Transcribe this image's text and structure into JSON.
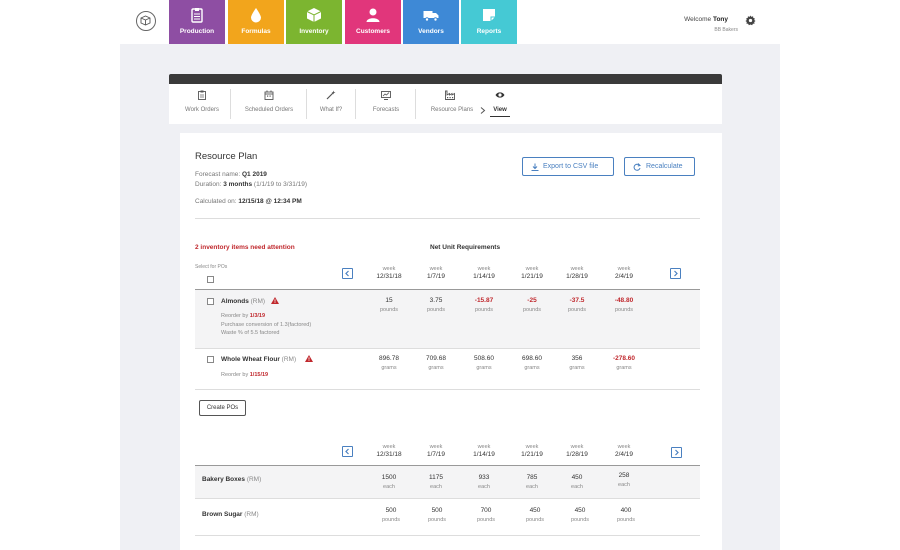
{
  "nav": {
    "tabs": [
      {
        "label": "Production",
        "color": "#8e4ea3",
        "icon": "clipboard-icon"
      },
      {
        "label": "Formulas",
        "color": "#f2a51c",
        "icon": "drop-icon"
      },
      {
        "label": "Inventory",
        "color": "#7cb530",
        "icon": "box-icon"
      },
      {
        "label": "Customers",
        "color": "#e1367b",
        "icon": "person-icon"
      },
      {
        "label": "Vendors",
        "color": "#3e89d6",
        "icon": "truck-icon"
      },
      {
        "label": "Reports",
        "color": "#45c9d4",
        "icon": "report-icon"
      }
    ]
  },
  "user": {
    "welcome": "Welcome",
    "name": "Tony",
    "org": "BB Bakers"
  },
  "subnav": [
    {
      "label": "Work Orders"
    },
    {
      "label": "Scheduled Orders"
    },
    {
      "label": "What If?"
    },
    {
      "label": "Forecasts"
    },
    {
      "label": "Resource Plans"
    },
    {
      "label": "View"
    }
  ],
  "plan": {
    "title": "Resource Plan",
    "forecast_label": "Forecast name:",
    "forecast_name": "Q1 2019",
    "duration_label": "Duration:",
    "duration": "3 months",
    "duration_range": "(1/1/19 to 3/31/19)",
    "calculated_label": "Calculated on:",
    "calculated": "12/15/18 @ 12:34 PM",
    "export_label": "Export to CSV file",
    "recalc_label": "Recalculate"
  },
  "attention": "2 inventory items need attention",
  "table_title": "Net Unit Requirements",
  "select_label": "Select for POs",
  "weeks": [
    {
      "w": "week",
      "d": "12/31/18"
    },
    {
      "w": "week",
      "d": "1/7/19"
    },
    {
      "w": "week",
      "d": "1/14/19"
    },
    {
      "w": "week",
      "d": "1/21/19"
    },
    {
      "w": "week",
      "d": "1/28/19"
    },
    {
      "w": "week",
      "d": "2/4/19"
    }
  ],
  "items": [
    {
      "name": "Almonds",
      "tag": "(RM)",
      "reorder_label": "Reorder by",
      "reorder": "1/3/19",
      "note1": "Purchase conversion of 1.3(factored)",
      "note2": "Waste % of 5.5 factored",
      "cells": [
        {
          "v": "15",
          "u": "pounds",
          "neg": false
        },
        {
          "v": "3.75",
          "u": "pounds",
          "neg": false
        },
        {
          "v": "-15.87",
          "u": "pounds",
          "neg": true
        },
        {
          "v": "-25",
          "u": "pounds",
          "neg": true
        },
        {
          "v": "-37.5",
          "u": "pounds",
          "neg": true
        },
        {
          "v": "-48.80",
          "u": "pounds",
          "neg": true
        }
      ]
    },
    {
      "name": "Whole Wheat Flour",
      "tag": "(RM)",
      "reorder_label": "Reorder by",
      "reorder": "1/15/19",
      "cells": [
        {
          "v": "896.78",
          "u": "grams",
          "neg": false
        },
        {
          "v": "709.68",
          "u": "grams",
          "neg": false
        },
        {
          "v": "508.60",
          "u": "grams",
          "neg": false
        },
        {
          "v": "698.60",
          "u": "grams",
          "neg": false
        },
        {
          "v": "356",
          "u": "grams",
          "neg": false
        },
        {
          "v": "-278.60",
          "u": "grams",
          "neg": true
        }
      ]
    }
  ],
  "create_pos": "Create POs",
  "items2": [
    {
      "name": "Bakery Boxes",
      "tag": "(RM)",
      "cells": [
        {
          "v": "1500",
          "u": "each"
        },
        {
          "v": "1175",
          "u": "each"
        },
        {
          "v": "933",
          "u": "each"
        },
        {
          "v": "785",
          "u": "each"
        },
        {
          "v": "450",
          "u": "each"
        },
        {
          "v": "258",
          "u": "each"
        }
      ]
    },
    {
      "name": "Brown Sugar",
      "tag": "(RM)",
      "cells": [
        {
          "v": "500",
          "u": "pounds"
        },
        {
          "v": "500",
          "u": "pounds"
        },
        {
          "v": "700",
          "u": "pounds"
        },
        {
          "v": "450",
          "u": "pounds"
        },
        {
          "v": "450",
          "u": "pounds"
        },
        {
          "v": "400",
          "u": "pounds"
        }
      ]
    }
  ]
}
